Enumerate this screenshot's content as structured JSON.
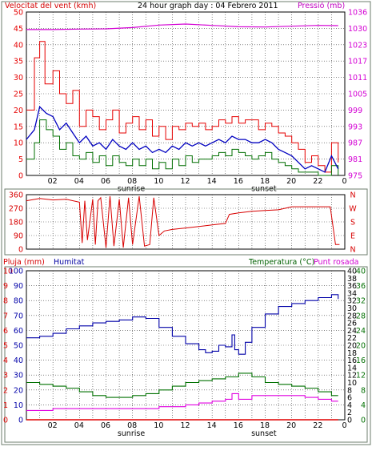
{
  "header": {
    "wind_label": "Velocitat del vent (kmh)",
    "title": "24 hour graph day : 04 Febrero 2011",
    "pressure_label": "Pressió (mb)"
  },
  "lower_header": {
    "rain_label": "Pluja (mm)",
    "humidity_label": "Humitat",
    "temperature_label": "Temperatura (°C)",
    "dewpoint_label": "Punt rosada"
  },
  "colors": {
    "frame": "#6d7d6d",
    "grid": "#3a3a3a",
    "wind": "#e60000",
    "wind_avg": "#0000c0",
    "gust": "#006f00",
    "pressure": "#d400d4",
    "direction": "#d80000",
    "humidity": "#0000a8",
    "temperature": "#007000",
    "dewpoint": "#e000e0",
    "rain": "#e00000"
  },
  "x_axis": {
    "hour_ticks": [
      "02",
      "04",
      "06",
      "08",
      "10",
      "12",
      "14",
      "16",
      "18",
      "20",
      "22",
      "0"
    ],
    "sunrise_label": "sunrise",
    "sunset_label": "sunset"
  },
  "chart_data": [
    {
      "id": "wind-pressure",
      "type": "line",
      "x_unit": "hour",
      "y_left": {
        "label": "Velocitat del vent (kmh)",
        "min": 0,
        "max": 50,
        "ticks": [
          0,
          5,
          10,
          15,
          20,
          25,
          30,
          35,
          40,
          45,
          50
        ]
      },
      "y_right": {
        "label": "Pressió (mb)",
        "ticks": [
          975,
          981,
          987,
          993,
          999,
          1005,
          1011,
          1017,
          1023,
          1030,
          1036
        ]
      },
      "series": [
        {
          "key": "wind",
          "axis": "left",
          "x": [
            0,
            0.6,
            1.0,
            1.4,
            2.0,
            2.5,
            3.0,
            3.5,
            4.0,
            4.5,
            5.0,
            5.5,
            6.0,
            6.5,
            7.0,
            7.5,
            8.0,
            8.5,
            9.0,
            9.5,
            10.0,
            10.5,
            11.0,
            11.5,
            12.0,
            12.5,
            13.0,
            13.5,
            14.0,
            14.5,
            15.0,
            15.5,
            16.0,
            16.5,
            17.0,
            17.5,
            18.0,
            18.5,
            19.0,
            19.5,
            20.0,
            20.5,
            21.0,
            21.5,
            22.0,
            22.5,
            23.0,
            23.5
          ],
          "y": [
            20,
            36,
            41,
            28,
            32,
            25,
            22,
            26,
            15,
            20,
            18,
            14,
            17,
            20,
            13,
            16,
            18,
            14,
            17,
            12,
            15,
            11,
            15,
            14,
            16,
            15,
            16,
            14,
            15,
            17,
            16,
            18,
            16,
            17,
            17,
            14,
            16,
            15,
            13,
            12,
            10,
            8,
            4,
            6,
            3,
            1,
            10,
            4
          ]
        },
        {
          "key": "average",
          "axis": "left",
          "x": [
            0,
            0.6,
            1.0,
            1.5,
            2.0,
            2.5,
            3.0,
            3.5,
            4.0,
            4.5,
            5.0,
            5.5,
            6.0,
            6.5,
            7.0,
            7.5,
            8.0,
            8.5,
            9.0,
            9.5,
            10.0,
            10.5,
            11.0,
            11.5,
            12.0,
            12.5,
            13.0,
            13.5,
            14.0,
            14.5,
            15.0,
            15.5,
            16.0,
            16.5,
            17.0,
            17.5,
            18.0,
            18.5,
            19.0,
            19.5,
            20.0,
            20.5,
            21.0,
            21.5,
            22.0,
            22.5,
            23.0,
            23.5
          ],
          "y": [
            11,
            14,
            21,
            19,
            18,
            14,
            16,
            13,
            10,
            12,
            9,
            10,
            8,
            11,
            9,
            8,
            10,
            8,
            9,
            7,
            8,
            7,
            9,
            8,
            10,
            9,
            10,
            9,
            10,
            11,
            10,
            12,
            11,
            11,
            10,
            10,
            11,
            10,
            8,
            7,
            6,
            4,
            2,
            3,
            2,
            1,
            6,
            2
          ]
        },
        {
          "key": "gust",
          "axis": "left",
          "x": [
            0,
            0.6,
            1.0,
            1.5,
            2.0,
            2.5,
            3.0,
            3.5,
            4.0,
            4.5,
            5.0,
            5.5,
            6.0,
            6.5,
            7.0,
            7.5,
            8.0,
            8.5,
            9.0,
            9.5,
            10.0,
            10.5,
            11.0,
            11.5,
            12.0,
            12.5,
            13.0,
            13.5,
            14.0,
            14.5,
            15.0,
            15.5,
            16.0,
            16.5,
            17.0,
            17.5,
            18.0,
            18.5,
            19.0,
            19.5,
            20.0,
            20.5,
            21.0,
            21.5,
            22.0,
            22.5,
            23.0,
            23.5
          ],
          "y": [
            5,
            10,
            17,
            14,
            12,
            8,
            10,
            6,
            5,
            7,
            4,
            6,
            3,
            6,
            4,
            3,
            5,
            3,
            5,
            2,
            4,
            2,
            5,
            3,
            6,
            4,
            5,
            5,
            6,
            7,
            6,
            8,
            7,
            6,
            5,
            6,
            7,
            5,
            4,
            3,
            2,
            1,
            1,
            1,
            0,
            0,
            3,
            0
          ]
        },
        {
          "key": "pressure",
          "axis": "right",
          "x": [
            0,
            2,
            4,
            6,
            8,
            10,
            12,
            14,
            16,
            18,
            20,
            22,
            23.5
          ],
          "y": [
            1029.5,
            1029.5,
            1029.7,
            1029.8,
            1030.3,
            1031.2,
            1031.6,
            1031.1,
            1030.6,
            1030.5,
            1030.8,
            1031.1,
            1031.0
          ]
        }
      ]
    },
    {
      "id": "wind-direction",
      "type": "line",
      "x_unit": "hour",
      "y_left": {
        "min": 0,
        "max": 360,
        "ticks": [
          0,
          90,
          180,
          270,
          360
        ]
      },
      "y_right": {
        "ticks": [
          "N",
          "E",
          "S",
          "W",
          "N"
        ]
      },
      "series": [
        {
          "key": "direction",
          "axis": "left",
          "x": [
            0,
            1,
            2,
            3,
            4,
            4.2,
            4.4,
            4.6,
            5,
            5.2,
            5.4,
            5.6,
            6,
            6.3,
            6.6,
            7,
            7.3,
            7.7,
            8,
            8.5,
            8.9,
            9.3,
            9.6,
            10,
            10.4,
            11,
            12,
            13,
            14,
            15,
            15.3,
            16,
            17,
            18,
            19,
            19.5,
            20,
            21,
            22,
            22.9,
            23.3,
            23.6
          ],
          "y": [
            320,
            335,
            325,
            330,
            310,
            40,
            320,
            60,
            330,
            30,
            320,
            340,
            10,
            350,
            20,
            330,
            10,
            340,
            30,
            350,
            20,
            30,
            340,
            90,
            120,
            130,
            140,
            150,
            160,
            170,
            230,
            240,
            250,
            255,
            260,
            270,
            280,
            280,
            280,
            280,
            30,
            30
          ]
        }
      ]
    },
    {
      "id": "rain-humidity-temperature",
      "type": "line",
      "x_unit": "hour",
      "y_left": {
        "label": "Pluja (mm)",
        "ticks": [
          0,
          1,
          2,
          3,
          4,
          5,
          6,
          7,
          8,
          9,
          10
        ]
      },
      "y_left_inner": {
        "label": "Humitat",
        "min": 0,
        "max": 100,
        "ticks": [
          0,
          10,
          20,
          30,
          40,
          50,
          60,
          70,
          80,
          90,
          100
        ]
      },
      "y_right": {
        "label": "Temperatura (°C)",
        "min": 0,
        "max": 40,
        "ticks": [
          0,
          4,
          8,
          12,
          16,
          20,
          24,
          28,
          32,
          36,
          40
        ]
      },
      "y_right_inner": {
        "ticks": [
          0,
          2,
          4,
          6,
          8,
          10,
          12,
          14,
          16,
          18,
          20,
          22,
          24,
          26,
          28,
          30,
          32,
          34,
          36,
          38,
          40
        ]
      },
      "series": [
        {
          "key": "humidity",
          "axis": "left_inner",
          "x": [
            0,
            1,
            2,
            3,
            4,
            5,
            6,
            7,
            8,
            9,
            10,
            11,
            12,
            13,
            13.5,
            14,
            14.5,
            15,
            15.5,
            15.7,
            16,
            16.5,
            17,
            18,
            19,
            20,
            21,
            22,
            23,
            23.5
          ],
          "y": [
            55,
            56,
            58,
            61,
            63,
            65,
            66,
            67,
            69,
            68,
            62,
            56,
            51,
            47,
            45,
            46,
            50,
            49,
            57,
            47,
            44,
            52,
            62,
            71,
            76,
            78,
            80,
            82,
            84,
            81
          ]
        },
        {
          "key": "temperature",
          "axis": "right",
          "x": [
            0,
            1,
            2,
            3,
            4,
            5,
            6,
            7,
            8,
            9,
            10,
            11,
            12,
            13,
            14,
            15,
            16,
            17,
            18,
            19,
            20,
            21,
            22,
            23,
            23.5
          ],
          "y": [
            10.0,
            9.5,
            9.0,
            8.5,
            7.5,
            6.5,
            6.0,
            6.0,
            6.5,
            7.0,
            8.0,
            9.0,
            10.0,
            10.5,
            11.0,
            11.5,
            12.5,
            11.5,
            10.0,
            9.5,
            9.0,
            8.5,
            7.5,
            6.5,
            6.5
          ]
        },
        {
          "key": "dewpoint",
          "axis": "right",
          "x": [
            0,
            1,
            2,
            3,
            4,
            5,
            6,
            7,
            8,
            9,
            10,
            11,
            12,
            13,
            14,
            15,
            15.5,
            16,
            17,
            18,
            19,
            20,
            21,
            22,
            23,
            23.5
          ],
          "y": [
            2.5,
            2.5,
            3.0,
            3.0,
            3.0,
            3.0,
            3.0,
            3.0,
            3.0,
            3.0,
            3.5,
            3.5,
            4.0,
            4.5,
            5.0,
            5.5,
            7.0,
            5.5,
            6.5,
            6.5,
            6.5,
            6.5,
            6.0,
            5.5,
            5.0,
            5.0
          ]
        },
        {
          "key": "rain",
          "axis": "left",
          "x": [
            0,
            23.5
          ],
          "y": [
            0,
            0
          ]
        }
      ]
    }
  ]
}
